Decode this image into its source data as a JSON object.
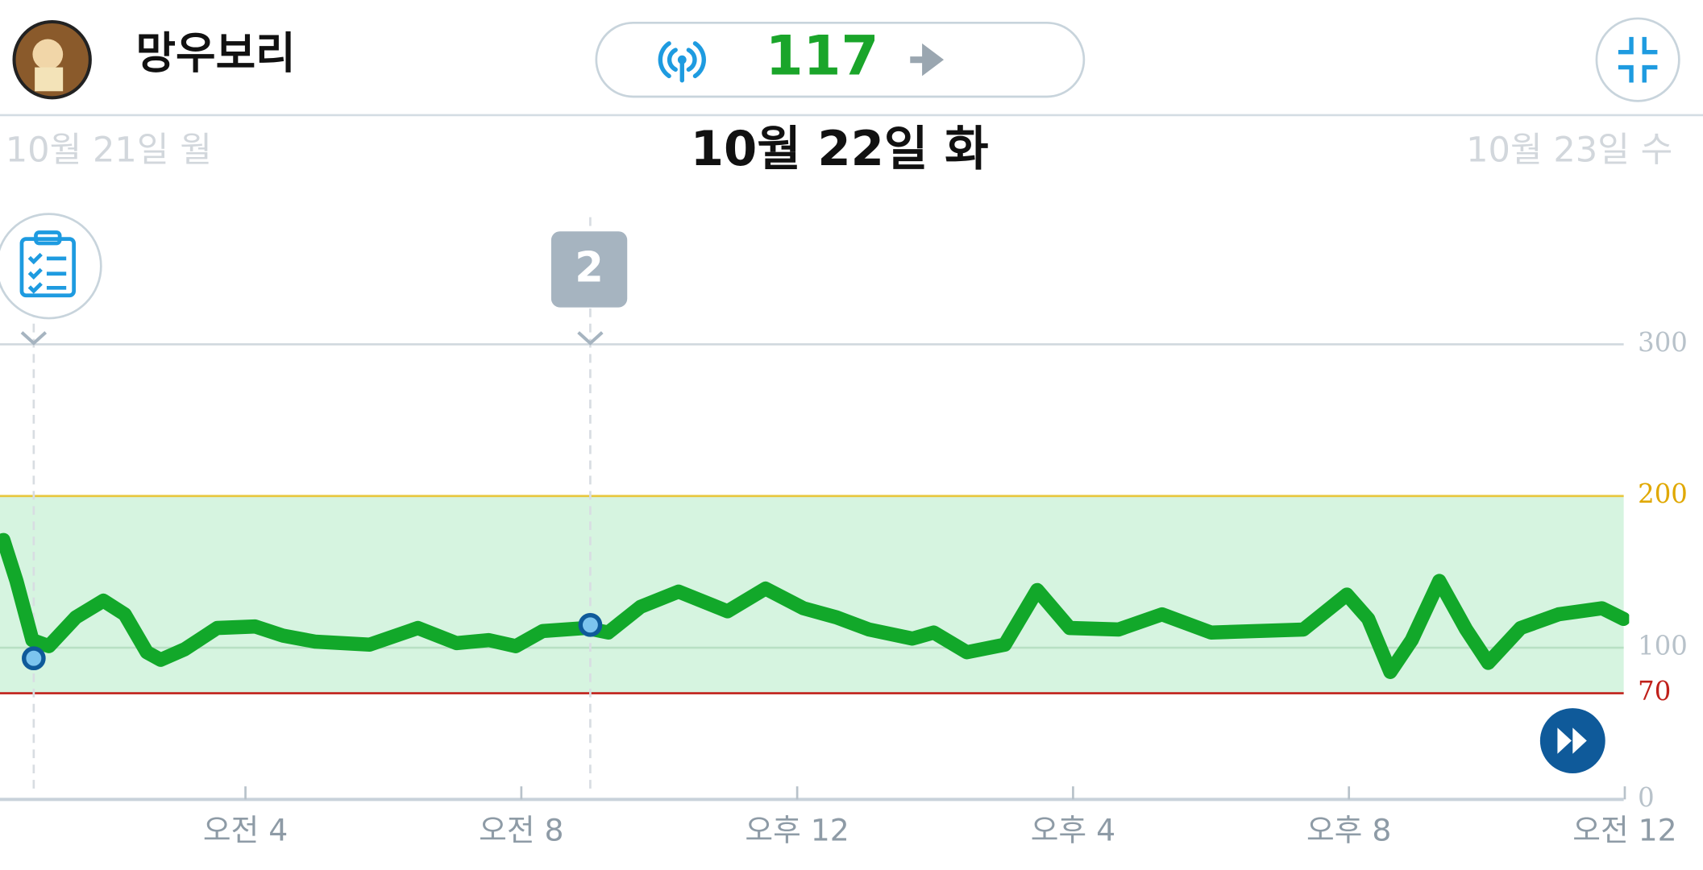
{
  "header": {
    "name": "망우보리",
    "current": "117"
  },
  "dates": {
    "previous": "10월 21일 월",
    "current": "10월 22일 화",
    "next": "10월 23일 수"
  },
  "chart_data": {
    "type": "line",
    "color": "#12a82a",
    "x": [
      0.49,
      0.68,
      0.91,
      1.15,
      1.54,
      1.94,
      2.25,
      2.57,
      2.77,
      3.12,
      3.59,
      4.14,
      4.54,
      5.01,
      5.8,
      6.5,
      7.06,
      7.53,
      7.92,
      8.31,
      8.94,
      9.26,
      9.73,
      10.28,
      10.99,
      11.54,
      12.09,
      12.57,
      13.04,
      13.67,
      13.98,
      14.46,
      15.01,
      15.48,
      15.95,
      16.66,
      17.29,
      18.0,
      19.34,
      19.97,
      20.28,
      20.6,
      20.91,
      21.31,
      21.7,
      22.02,
      22.49,
      23.04,
      23.67,
      23.98
    ],
    "values": [
      171,
      144,
      105,
      101,
      120,
      131,
      122,
      97,
      92,
      99,
      113,
      114,
      108,
      104,
      102,
      113,
      103,
      105,
      101,
      111,
      113,
      110,
      127,
      137,
      124,
      139,
      126,
      120,
      112,
      106,
      110,
      97,
      102,
      138,
      113,
      112,
      122,
      110,
      112,
      135,
      119,
      84,
      105,
      144,
      112,
      90,
      113,
      122,
      126,
      119
    ],
    "xlim": [
      0,
      24
    ],
    "xticks": [
      {
        "value": 4,
        "label": "오전 4"
      },
      {
        "value": 8,
        "label": "오전 8"
      },
      {
        "value": 12,
        "label": "오후 12"
      },
      {
        "value": 16,
        "label": "오후 4"
      },
      {
        "value": 20,
        "label": "오후 8"
      },
      {
        "value": 24,
        "label": "오전 12"
      }
    ],
    "ylim": [
      0,
      300
    ],
    "yticks": [
      0,
      70,
      100,
      200,
      300
    ],
    "low_limit": 70,
    "high_limit": 200,
    "events": [
      {
        "x": 0.93,
        "value": 93
      },
      {
        "x": 9.0,
        "value": 115,
        "label": "2"
      }
    ]
  }
}
